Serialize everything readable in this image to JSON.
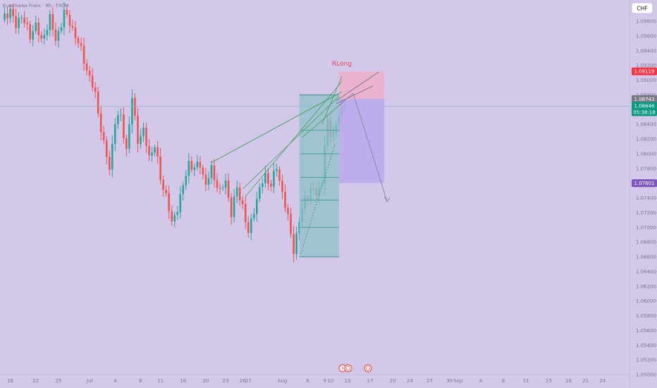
{
  "title": "Euro/Swiss Franc · 8h · FXCM",
  "currency_button": {
    "label": "CHF"
  },
  "colors": {
    "background": "#d4c8ea",
    "up": "#26a69a",
    "down": "#ef5350",
    "target_zone": "#8fc0c8",
    "stop_zone": "#ebb0cc",
    "projection_zone": "#b9a8ec",
    "trendline": "#43a05a",
    "arrow": "#8a8aa0"
  },
  "annotation": {
    "label": "RLong"
  },
  "price_tags": [
    {
      "name": "stop-level-tag",
      "value": "1.09119",
      "price": 1.09119,
      "color": "#f23645"
    },
    {
      "name": "previous-close-tag",
      "value": "1.08743",
      "price": 1.08743,
      "color": "#787b86"
    },
    {
      "name": "current-price-tag",
      "value": "1.08646",
      "countdown": "05:38:18",
      "price": 1.08646,
      "color": "#089981"
    },
    {
      "name": "target-level-tag",
      "value": "1.07601",
      "price": 1.07601,
      "color": "#7e57c2"
    }
  ],
  "chart_data": {
    "type": "candlestick",
    "ylim": [
      1.05,
      1.1005
    ],
    "y_ticks": [
      1.098,
      1.096,
      1.094,
      1.092,
      1.09,
      1.088,
      1.086,
      1.084,
      1.082,
      1.08,
      1.078,
      1.076,
      1.074,
      1.072,
      1.07,
      1.068,
      1.066,
      1.064,
      1.062,
      1.06,
      1.058,
      1.056,
      1.054,
      1.052,
      1.05
    ],
    "x_labels": [
      {
        "label": "18",
        "index": 3
      },
      {
        "label": "22",
        "index": 12
      },
      {
        "label": "25",
        "index": 20
      },
      {
        "label": "Jul",
        "index": 31
      },
      {
        "label": "4",
        "index": 40
      },
      {
        "label": "8",
        "index": 49
      },
      {
        "label": "11",
        "index": 56
      },
      {
        "label": "16",
        "index": 64
      },
      {
        "label": "20",
        "index": 72
      },
      {
        "label": "23",
        "index": 79
      },
      {
        "label": "26",
        "index": 85
      },
      {
        "label": "27",
        "index": 87
      },
      {
        "label": "Aug",
        "index": 99
      },
      {
        "label": "6",
        "index": 108
      },
      {
        "label": "9",
        "index": 114
      },
      {
        "label": "10",
        "index": 116
      },
      {
        "label": "13",
        "index": 122
      },
      {
        "label": "17",
        "index": 130
      },
      {
        "label": "20",
        "index": 138
      },
      {
        "label": "24",
        "index": 144
      },
      {
        "label": "27",
        "index": 151
      },
      {
        "label": "30",
        "index": 158
      },
      {
        "label": "Sep",
        "index": 161
      },
      {
        "label": "4",
        "index": 169
      },
      {
        "label": "8",
        "index": 177
      },
      {
        "label": "11",
        "index": 185
      },
      {
        "label": "15",
        "index": 193
      },
      {
        "label": "18",
        "index": 200
      },
      {
        "label": "21",
        "index": 206
      },
      {
        "label": "24",
        "index": 212
      }
    ],
    "current_price": 1.08646,
    "waypoints": [
      [
        0,
        1.0982
      ],
      [
        3,
        1.0996
      ],
      [
        5,
        1.0972
      ],
      [
        7,
        1.099
      ],
      [
        10,
        1.0958
      ],
      [
        12,
        1.0978
      ],
      [
        14,
        1.095
      ],
      [
        17,
        1.0986
      ],
      [
        19,
        1.0952
      ],
      [
        22,
        1.0992
      ],
      [
        25,
        1.097
      ],
      [
        28,
        1.094
      ],
      [
        30,
        1.0915
      ],
      [
        33,
        1.088
      ],
      [
        36,
        1.0812
      ],
      [
        38,
        1.078
      ],
      [
        40,
        1.0845
      ],
      [
        42,
        1.085
      ],
      [
        44,
        1.0805
      ],
      [
        46,
        1.0875
      ],
      [
        48,
        1.082
      ],
      [
        50,
        1.083
      ],
      [
        52,
        1.0796
      ],
      [
        54,
        1.0812
      ],
      [
        56,
        1.0766
      ],
      [
        58,
        1.0744
      ],
      [
        60,
        1.0704
      ],
      [
        62,
        1.0728
      ],
      [
        64,
        1.0755
      ],
      [
        66,
        1.0788
      ],
      [
        68,
        1.078
      ],
      [
        70,
        1.0786
      ],
      [
        72,
        1.0758
      ],
      [
        74,
        1.0778
      ],
      [
        77,
        1.0748
      ],
      [
        79,
        1.0762
      ],
      [
        81,
        1.072
      ],
      [
        83,
        1.0752
      ],
      [
        85,
        1.073
      ],
      [
        87,
        1.069
      ],
      [
        89,
        1.0725
      ],
      [
        91,
        1.0752
      ],
      [
        93,
        1.077
      ],
      [
        95,
        1.0758
      ],
      [
        97,
        1.0781
      ],
      [
        99,
        1.0748
      ],
      [
        101,
        1.0712
      ],
      [
        103,
        1.067
      ],
      [
        105,
        1.0708
      ],
      [
        107,
        1.074
      ],
      [
        109,
        1.075
      ],
      [
        111,
        1.0746
      ],
      [
        113,
        1.0762
      ],
      [
        114,
        1.0812
      ],
      [
        115,
        1.084
      ],
      [
        116,
        1.0828
      ],
      [
        118,
        1.0836
      ],
      [
        119,
        1.0852
      ],
      [
        120,
        1.086
      ],
      [
        121,
        1.0864
      ]
    ]
  }
}
